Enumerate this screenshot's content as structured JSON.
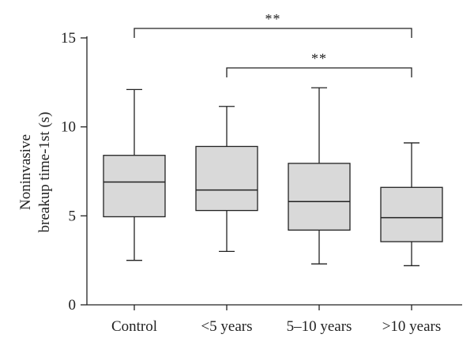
{
  "chart_data": {
    "type": "boxplot",
    "title": "",
    "xlabel": "",
    "ylabel": [
      "Noninvasive",
      "breakup time-1st (s)"
    ],
    "ylim": [
      0,
      15
    ],
    "yticks": [
      0,
      5,
      10,
      15
    ],
    "categories": [
      "Control",
      "<5 years",
      "5–10 years",
      ">10 years"
    ],
    "boxes": [
      {
        "whisker_low": 2.5,
        "q1": 4.95,
        "median": 6.9,
        "q3": 8.4,
        "whisker_high": 12.1
      },
      {
        "whisker_low": 3.0,
        "q1": 5.3,
        "median": 6.45,
        "q3": 8.9,
        "whisker_high": 11.15
      },
      {
        "whisker_low": 2.3,
        "q1": 4.2,
        "median": 5.8,
        "q3": 7.95,
        "whisker_high": 12.2
      },
      {
        "whisker_low": 2.2,
        "q1": 3.55,
        "median": 4.9,
        "q3": 6.6,
        "whisker_high": 9.1
      }
    ],
    "significance": [
      {
        "from": 0,
        "to": 3,
        "label": "**"
      },
      {
        "from": 1,
        "to": 3,
        "label": "**"
      }
    ],
    "box_fill": "#d9d9d9",
    "line_color": "#222222",
    "grid": false
  }
}
